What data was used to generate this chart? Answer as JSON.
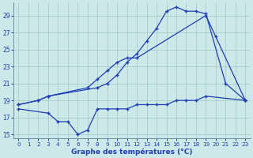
{
  "line_color": "#1e3eb4",
  "bg_color": "#cce8e8",
  "grid_color": "#a0c8c8",
  "xlabel": "Graphe des températures (°C)",
  "xlim": [
    -0.5,
    23.5
  ],
  "ylim": [
    14.5,
    30.5
  ],
  "yticks": [
    15,
    17,
    19,
    21,
    23,
    25,
    27,
    29
  ],
  "xticks": [
    0,
    1,
    2,
    3,
    4,
    5,
    6,
    7,
    8,
    9,
    10,
    11,
    12,
    13,
    14,
    15,
    16,
    17,
    18,
    19,
    20,
    21,
    22,
    23
  ],
  "top_x": [
    0,
    2,
    3,
    8,
    9,
    10,
    11,
    12,
    13,
    14,
    15,
    16,
    17,
    18,
    19,
    21,
    23
  ],
  "top_y": [
    18.5,
    19.0,
    19.5,
    20.5,
    21.0,
    22.0,
    23.5,
    24.5,
    26.0,
    27.5,
    29.5,
    30.0,
    29.5,
    29.5,
    29.2,
    21.0,
    19.0
  ],
  "mid_x": [
    0,
    2,
    3,
    7,
    8,
    9,
    10,
    11,
    12,
    19,
    20,
    23
  ],
  "mid_y": [
    18.5,
    19.0,
    19.5,
    20.5,
    21.5,
    22.5,
    23.5,
    24.0,
    24.0,
    29.0,
    26.5,
    19.0
  ],
  "bot_x": [
    0,
    3,
    4,
    5,
    6,
    7,
    8,
    9,
    10,
    11,
    12,
    13,
    14,
    15,
    16,
    17,
    18,
    19,
    23
  ],
  "bot_y": [
    18.0,
    17.5,
    16.5,
    16.5,
    15.0,
    15.5,
    18.0,
    18.0,
    18.0,
    18.0,
    18.5,
    18.5,
    18.5,
    18.5,
    19.0,
    19.0,
    19.0,
    19.5,
    19.0
  ]
}
